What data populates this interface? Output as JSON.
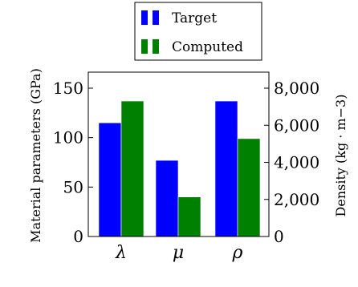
{
  "chart_data": {
    "type": "bar",
    "categories": [
      "λ",
      "μ",
      "ρ"
    ],
    "series": [
      {
        "name": "Target",
        "color": "#0000ff",
        "values": [
          115,
          77,
          137
        ],
        "axis": "left"
      },
      {
        "name": "Computed",
        "color": "#008000",
        "values": [
          137,
          40,
          99
        ],
        "axis": "left"
      }
    ],
    "ylabel_left": "Material parameters (GPa)",
    "ylabel_right": "Density (kg · m−3)",
    "ylim_left": [
      0,
      150
    ],
    "ylim_right": [
      0,
      8000
    ],
    "yticks_left": [
      "0",
      "50",
      "100",
      "150"
    ],
    "yticks_right": [
      "0",
      "2,000",
      "4,000",
      "6,000",
      "8,000"
    ],
    "legend_position": "top-center",
    "grid": false
  }
}
